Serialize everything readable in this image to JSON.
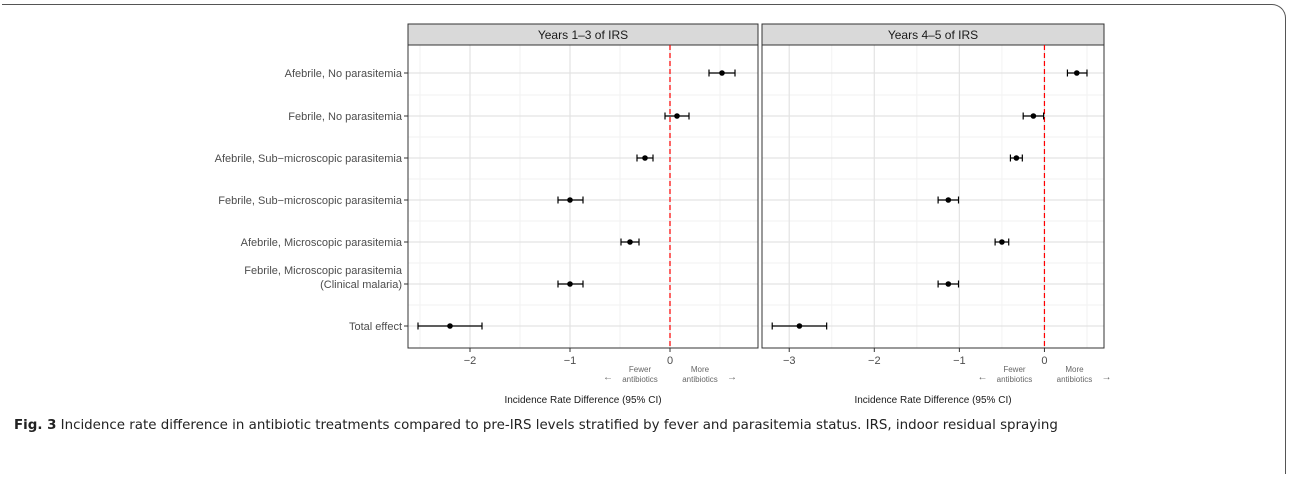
{
  "caption": {
    "label": "Fig. 3",
    "text": " Incidence rate difference in antibiotic treatments compared to pre-IRS levels stratified by fever and parasitemia status. IRS, indoor residual spraying"
  },
  "chart_data": {
    "type": "forest",
    "xlabel": "Incidence Rate Difference (95% CI)",
    "categories": [
      "Afebrile, No parasitemia",
      "Febrile, No parasitemia",
      "Afebrile, Sub−microscopic parasitemia",
      "Febrile, Sub−microscopic parasitemia",
      "Afebrile, Microscopic parasitemia",
      [
        "Febrile, Microscopic parasitemia",
        "(Clinical malaria)"
      ],
      "Total effect"
    ],
    "reference_line": {
      "x": 0,
      "color": "#ff0000",
      "style": "dashed"
    },
    "annotation": {
      "left": [
        "Fewer",
        "antibiotics"
      ],
      "right": [
        "More",
        "antibiotics"
      ]
    },
    "panels": [
      {
        "title": "Years 1–3 of IRS",
        "xlim": [
          -2.62,
          0.88
        ],
        "xticks": [
          -2,
          -1,
          0
        ],
        "tick_labels": [
          "−2",
          "−1",
          "0"
        ],
        "estimates": [
          0.52,
          0.07,
          -0.25,
          -1.0,
          -0.4,
          -1.0,
          -2.2
        ],
        "lower": [
          0.39,
          -0.05,
          -0.33,
          -1.12,
          -0.49,
          -1.12,
          -2.52
        ],
        "upper": [
          0.65,
          0.19,
          -0.17,
          -0.87,
          -0.31,
          -0.87,
          -1.88
        ]
      },
      {
        "title": "Years 4–5 of IRS",
        "xlim": [
          -3.32,
          0.7
        ],
        "xticks": [
          -3,
          -2,
          -1,
          0
        ],
        "tick_labels": [
          "−3",
          "−2",
          "−1",
          "0"
        ],
        "estimates": [
          0.38,
          -0.13,
          -0.33,
          -1.13,
          -0.5,
          -1.13,
          -2.88
        ],
        "lower": [
          0.27,
          -0.25,
          -0.4,
          -1.25,
          -0.58,
          -1.25,
          -3.2
        ],
        "upper": [
          0.5,
          -0.01,
          -0.26,
          -1.01,
          -0.42,
          -1.01,
          -2.56
        ]
      }
    ]
  }
}
